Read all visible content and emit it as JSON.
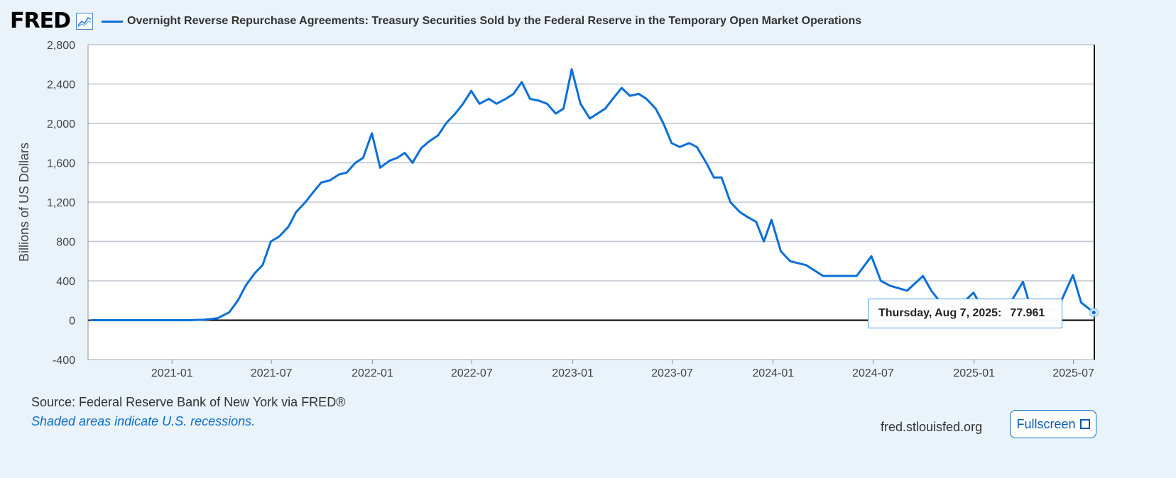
{
  "header": {
    "logo": "FRED",
    "series_title": "Overnight Reverse Repurchase Agreements: Treasury Securities Sold by the Federal Reserve in the Temporary Open Market Operations"
  },
  "tooltip": {
    "date": "Thursday, Aug 7, 2025:",
    "value": "77.961"
  },
  "footer": {
    "source": "Source: Federal Reserve Bank of New York via FRED®",
    "note": "Shaded areas indicate U.S. recessions.",
    "site": "fred.stlouisfed.org",
    "fullscreen_label": "Fullscreen"
  },
  "colors": {
    "series": "#0a6fd8",
    "grid": "#bfc6cf",
    "background": "#eaf2fa"
  },
  "chart_data": {
    "type": "line",
    "title": "Overnight Reverse Repurchase Agreements: Treasury Securities Sold by the Federal Reserve in the Temporary Open Market Operations",
    "ylabel": "Billions of US Dollars",
    "xlabel": "",
    "ylim": [
      -400,
      2800
    ],
    "yticks": [
      "2,800",
      "2,400",
      "2,000",
      "1,600",
      "1,200",
      "800",
      "400",
      "0",
      "-400"
    ],
    "ytick_values": [
      2800,
      2400,
      2000,
      1600,
      1200,
      800,
      400,
      0,
      -400
    ],
    "xticks": [
      "2021-01",
      "2021-07",
      "2022-01",
      "2022-07",
      "2023-01",
      "2023-07",
      "2024-01",
      "2024-07",
      "2025-01",
      "2025-07"
    ],
    "x_range": [
      "2020-08",
      "2025-08"
    ],
    "grid": true,
    "series": [
      {
        "name": "Overnight Reverse Repurchase Agreements: Treasury Securities Sold by the Federal Reserve in the Temporary Open Market Operations",
        "x": [
          "2020-08-07",
          "2020-10-01",
          "2020-12-01",
          "2021-02-01",
          "2021-03-01",
          "2021-03-25",
          "2021-04-15",
          "2021-05-01",
          "2021-05-15",
          "2021-06-01",
          "2021-06-15",
          "2021-06-30",
          "2021-07-15",
          "2021-08-01",
          "2021-08-15",
          "2021-09-01",
          "2021-09-15",
          "2021-09-30",
          "2021-10-15",
          "2021-11-01",
          "2021-11-15",
          "2021-12-01",
          "2021-12-15",
          "2021-12-31",
          "2022-01-15",
          "2022-02-01",
          "2022-02-15",
          "2022-03-01",
          "2022-03-15",
          "2022-03-31",
          "2022-04-15",
          "2022-05-01",
          "2022-05-15",
          "2022-06-01",
          "2022-06-15",
          "2022-06-30",
          "2022-07-15",
          "2022-08-01",
          "2022-08-15",
          "2022-09-01",
          "2022-09-15",
          "2022-09-30",
          "2022-10-15",
          "2022-11-01",
          "2022-11-15",
          "2022-12-01",
          "2022-12-15",
          "2022-12-30",
          "2023-01-15",
          "2023-02-01",
          "2023-02-15",
          "2023-03-01",
          "2023-03-15",
          "2023-03-31",
          "2023-04-15",
          "2023-05-01",
          "2023-05-15",
          "2023-06-01",
          "2023-06-15",
          "2023-06-30",
          "2023-07-15",
          "2023-08-01",
          "2023-08-15",
          "2023-09-01",
          "2023-09-15",
          "2023-09-29",
          "2023-10-15",
          "2023-11-01",
          "2023-11-15",
          "2023-12-01",
          "2023-12-15",
          "2023-12-29",
          "2024-01-15",
          "2024-02-01",
          "2024-03-01",
          "2024-04-01",
          "2024-05-01",
          "2024-06-01",
          "2024-06-28",
          "2024-07-15",
          "2024-08-01",
          "2024-09-01",
          "2024-09-30",
          "2024-10-15",
          "2024-11-01",
          "2024-12-01",
          "2024-12-31",
          "2025-01-15",
          "2025-02-01",
          "2025-03-01",
          "2025-03-31",
          "2025-04-15",
          "2025-05-01",
          "2025-06-01",
          "2025-06-30",
          "2025-07-15",
          "2025-08-07"
        ],
        "values": [
          0,
          0,
          0,
          0,
          5,
          20,
          80,
          200,
          350,
          480,
          560,
          800,
          850,
          950,
          1100,
          1200,
          1300,
          1400,
          1420,
          1480,
          1500,
          1600,
          1650,
          1900,
          1550,
          1620,
          1650,
          1700,
          1600,
          1750,
          1820,
          1880,
          2000,
          2100,
          2200,
          2330,
          2200,
          2250,
          2200,
          2250,
          2300,
          2420,
          2250,
          2230,
          2200,
          2100,
          2150,
          2550,
          2200,
          2050,
          2100,
          2150,
          2250,
          2360,
          2280,
          2300,
          2250,
          2150,
          2000,
          1800,
          1760,
          1800,
          1760,
          1600,
          1450,
          1450,
          1200,
          1100,
          1050,
          1000,
          800,
          1020,
          700,
          600,
          560,
          450,
          450,
          450,
          650,
          400,
          350,
          300,
          450,
          300,
          180,
          120,
          280,
          130,
          80,
          110,
          390,
          110,
          130,
          100,
          460,
          180,
          78
        ]
      }
    ]
  }
}
